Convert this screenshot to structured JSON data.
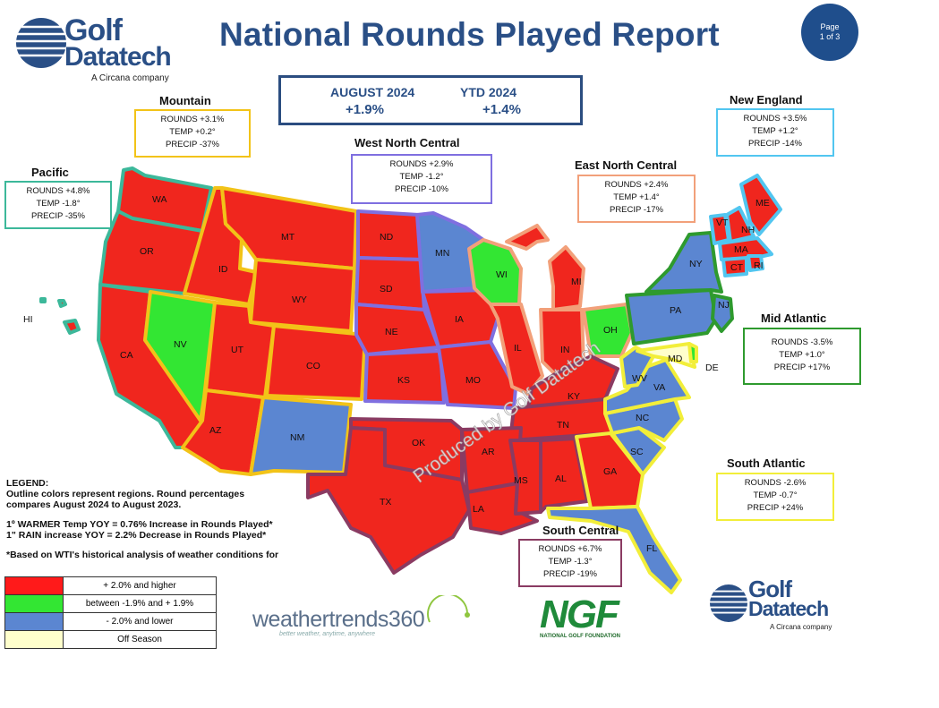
{
  "header": {
    "title": "National Rounds Played Report",
    "page_badge": [
      "Page",
      "1 of 3"
    ]
  },
  "logo": {
    "line1": "Golf",
    "line2": "Datatech",
    "sub": "A Circana company"
  },
  "summary": {
    "month_label": "AUGUST 2024",
    "month_value": "+1.9%",
    "ytd_label": "YTD 2024",
    "ytd_value": "+1.4%"
  },
  "regions": {
    "pacific": {
      "name": "Pacific",
      "rounds": "ROUNDS +4.8%",
      "temp": "TEMP -1.8°",
      "precip": "PRECIP -35%",
      "color": "#3cb89a"
    },
    "mountain": {
      "name": "Mountain",
      "rounds": "ROUNDS +3.1%",
      "temp": "TEMP +0.2°",
      "precip": "PRECIP -37%",
      "color": "#f2c318"
    },
    "west_north_central": {
      "name": "West North Central",
      "rounds": "ROUNDS +2.9%",
      "temp": "TEMP -1.2°",
      "precip": "PRECIP -10%",
      "color": "#7f6fe0"
    },
    "east_north_central": {
      "name": "East North Central",
      "rounds": "ROUNDS +2.4%",
      "temp": "TEMP +1.4°",
      "precip": "PRECIP -17%",
      "color": "#f2a07a"
    },
    "new_england": {
      "name": "New England",
      "rounds": "ROUNDS +3.5%",
      "temp": "TEMP +1.2°",
      "precip": "PRECIP -14%",
      "color": "#52c6f0"
    },
    "mid_atlantic": {
      "name": "Mid Atlantic",
      "rounds": "ROUNDS -3.5%",
      "temp": "TEMP +1.0°",
      "precip": "PRECIP +17%",
      "color": "#2e9a2e"
    },
    "south_atlantic": {
      "name": "South Atlantic",
      "rounds": "ROUNDS -2.6%",
      "temp": "TEMP -0.7°",
      "precip": "PRECIP +24%",
      "color": "#f2ee3a"
    },
    "south_central": {
      "name": "South Central",
      "rounds": "ROUNDS +6.7%",
      "temp": "TEMP -1.3°",
      "precip": "PRECIP -19%",
      "color": "#8a3b62"
    }
  },
  "states": [
    "WA",
    "OR",
    "CA",
    "ID",
    "NV",
    "MT",
    "WY",
    "UT",
    "CO",
    "AZ",
    "NM",
    "ND",
    "SD",
    "NE",
    "KS",
    "MN",
    "IA",
    "MO",
    "WI",
    "IL",
    "MI",
    "IN",
    "OH",
    "KY",
    "TN",
    "OK",
    "AR",
    "TX",
    "LA",
    "MS",
    "AL",
    "GA",
    "FL",
    "SC",
    "NC",
    "VA",
    "WV",
    "MD",
    "DE",
    "PA",
    "NY",
    "NJ",
    "VT",
    "NH",
    "ME",
    "MA",
    "CT",
    "RI",
    "HI"
  ],
  "legend": {
    "heading": "LEGEND:",
    "line1": "Outline colors represent regions. Round percentages",
    "line2": "compares August 2024 to August 2023.",
    "line3": "1º WARMER Temp YOY = 0.76% Increase in Rounds Played*",
    "line4": "1\" RAIN increase YOY = 2.2% Decrease in Rounds Played*",
    "line5": "*Based on WTI's historical analysis of weather conditions for",
    "items": [
      {
        "label": "+ 2.0% and higher",
        "color": "#ff1a1a"
      },
      {
        "label": "between -1.9% and + 1.9%",
        "color": "#33e633"
      },
      {
        "label": "- 2.0% and lower",
        "color": "#5b86d1"
      },
      {
        "label": "Off Season",
        "color": "#ffffcc"
      }
    ]
  },
  "watermark": "Produced by Golf Datatech",
  "sponsors": {
    "weathertrends": "weathertrends360",
    "weathertrends_tag": "better weather, anytime, anywhere",
    "ngf": "NGF",
    "ngf_sub": "NATIONAL GOLF FOUNDATION"
  },
  "colors": {
    "red": "#f0261e",
    "green": "#33e633",
    "blue": "#5b86d1",
    "title": "#2a4f86"
  }
}
